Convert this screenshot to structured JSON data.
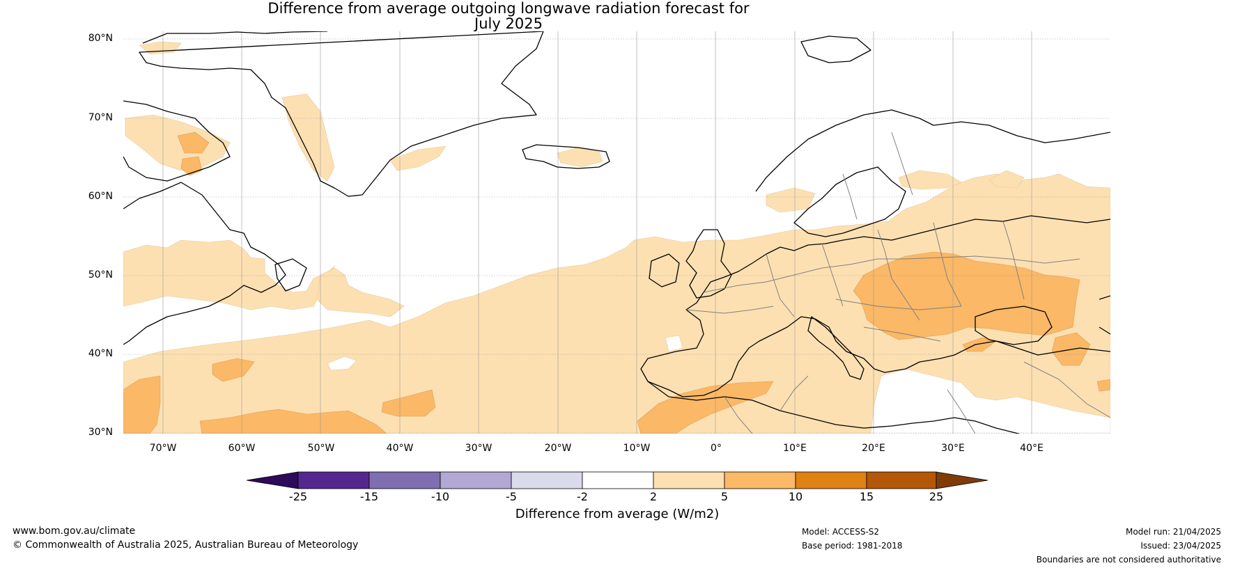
{
  "title": {
    "line1": "Difference from average outgoing longwave radiation forecast for",
    "line2": "July 2025"
  },
  "latitude_labels": [
    "80°N",
    "70°N",
    "60°N",
    "50°N",
    "40°N",
    "30°N"
  ],
  "longitude_labels": [
    "70°W",
    "60°W",
    "50°W",
    "40°W",
    "30°W",
    "20°W",
    "10°W",
    "0°",
    "10°E",
    "20°E",
    "30°E",
    "40°E"
  ],
  "colorbar": {
    "ticks": [
      "-25",
      "-15",
      "-10",
      "-5",
      "-2",
      "2",
      "5",
      "10",
      "15",
      "25"
    ],
    "colors": [
      "#2d0a5a",
      "#54278f",
      "#7f6fb0",
      "#b1a8d3",
      "#dadaeb",
      "#ffffff",
      "#fde0b2",
      "#fbb866",
      "#e08114",
      "#b35806",
      "#7f3b08"
    ],
    "label": "Difference from average (W/m2)"
  },
  "footer": {
    "website": "www.bom.gov.au/climate",
    "copyright": "© Commonwealth of Australia 2025, Australian Bureau of Meteorology",
    "model": "Model: ACCESS-S2",
    "base_period": "Base period: 1981-2018",
    "model_run": "Model run: 21/04/2025",
    "issued": "Issued: 23/04/2025",
    "disclaimer": "Boundaries are not considered authoritative"
  }
}
